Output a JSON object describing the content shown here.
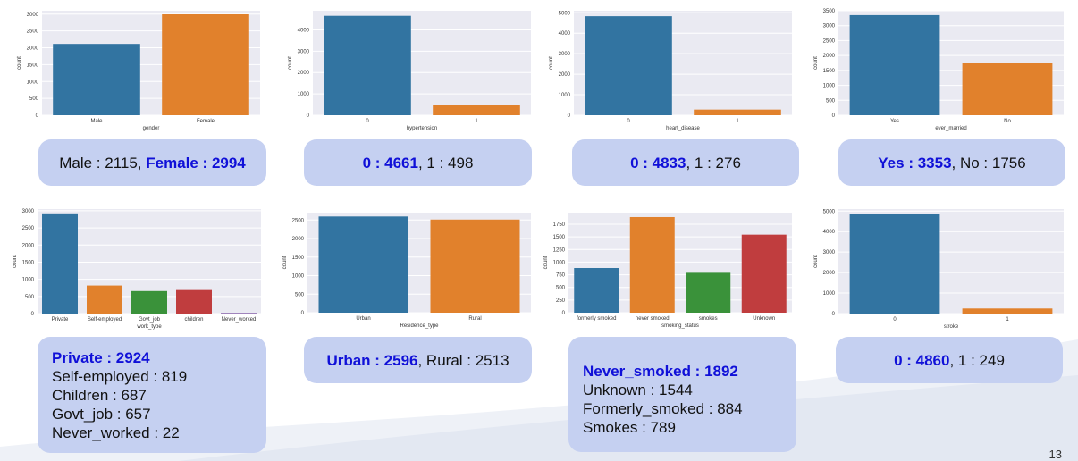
{
  "chart_data": [
    {
      "id": "c1",
      "type": "bar",
      "categories": [
        "Male",
        "Female"
      ],
      "values": [
        2115,
        2994
      ],
      "xlabel": "gender",
      "ylabel": "count",
      "ylim": [
        0,
        3100
      ],
      "yticks": [
        0,
        500,
        1000,
        1500,
        2000,
        2500,
        3000
      ],
      "colors": [
        "#3274a1",
        "#e1812c"
      ]
    },
    {
      "id": "c2",
      "type": "bar",
      "categories": [
        "0",
        "1"
      ],
      "values": [
        4661,
        498
      ],
      "xlabel": "hypertension",
      "ylabel": "count",
      "ylim": [
        0,
        4900
      ],
      "yticks": [
        0,
        1000,
        2000,
        3000,
        4000
      ],
      "colors": [
        "#3274a1",
        "#e1812c"
      ]
    },
    {
      "id": "c3",
      "type": "bar",
      "categories": [
        "0",
        "1"
      ],
      "values": [
        4833,
        276
      ],
      "xlabel": "heart_disease",
      "ylabel": "count",
      "ylim": [
        0,
        5100
      ],
      "yticks": [
        0,
        1000,
        2000,
        3000,
        4000,
        5000
      ],
      "colors": [
        "#3274a1",
        "#e1812c"
      ]
    },
    {
      "id": "c4",
      "type": "bar",
      "categories": [
        "Yes",
        "No"
      ],
      "values": [
        3353,
        1756
      ],
      "xlabel": "ever_married",
      "ylabel": "count",
      "ylim": [
        0,
        3500
      ],
      "yticks": [
        0,
        500,
        1000,
        1500,
        2000,
        2500,
        3000,
        3500
      ],
      "colors": [
        "#3274a1",
        "#e1812c"
      ]
    },
    {
      "id": "c5",
      "type": "bar",
      "categories": [
        "Private",
        "Self-employed",
        "Govt_job",
        "children",
        "Never_worked"
      ],
      "values": [
        2924,
        819,
        657,
        687,
        22
      ],
      "xlabel": "work_type",
      "ylabel": "count",
      "ylim": [
        0,
        3050
      ],
      "yticks": [
        0,
        500,
        1000,
        1500,
        2000,
        2500,
        3000
      ],
      "colors": [
        "#3274a1",
        "#e1812c",
        "#3a923a",
        "#c03d3e",
        "#9372b2"
      ]
    },
    {
      "id": "c6",
      "type": "bar",
      "categories": [
        "Urban",
        "Rural"
      ],
      "values": [
        2596,
        2513
      ],
      "xlabel": "Residence_type",
      "ylabel": "count",
      "ylim": [
        0,
        2700
      ],
      "yticks": [
        0,
        500,
        1000,
        1500,
        2000,
        2500
      ],
      "colors": [
        "#3274a1",
        "#e1812c"
      ]
    },
    {
      "id": "c7",
      "type": "bar",
      "categories": [
        "formerly smoked",
        "never smoked",
        "smokes",
        "Unknown"
      ],
      "values": [
        884,
        1892,
        789,
        1544
      ],
      "xlabel": "smoking_status",
      "ylabel": "count",
      "ylim": [
        0,
        1980
      ],
      "yticks": [
        0,
        250,
        500,
        750,
        1000,
        1250,
        1500,
        1750
      ],
      "colors": [
        "#3274a1",
        "#e1812c",
        "#3a923a",
        "#c03d3e"
      ]
    },
    {
      "id": "c8",
      "type": "bar",
      "categories": [
        "0",
        "1"
      ],
      "values": [
        4860,
        249
      ],
      "xlabel": "stroke",
      "ylabel": "count",
      "ylim": [
        0,
        5100
      ],
      "yticks": [
        0,
        1000,
        2000,
        3000,
        4000,
        5000
      ],
      "colors": [
        "#3274a1",
        "#e1812c"
      ]
    }
  ],
  "summaries": {
    "gender": {
      "male": "Male : 2115, ",
      "female": "Female : 2994"
    },
    "hypertension": {
      "hl": "0 : 4661",
      "rest": ", 1 : 498"
    },
    "heart_disease": {
      "hl": "0 : 4833",
      "rest": ", 1 : 276"
    },
    "ever_married": {
      "hl": "Yes : 3353",
      "rest": ", No : 1756"
    },
    "work_type": {
      "hl": "Private : 2924",
      "lines": [
        "Self-employed : 819",
        "Children : 687",
        "Govt_job : 657",
        "Never_worked : 22"
      ]
    },
    "residence": {
      "hl": "Urban : 2596",
      "rest": ", Rural : 2513"
    },
    "smoking": {
      "hl": "Never_smoked : 1892",
      "lines": [
        "Unknown : 1544",
        "Formerly_smoked : 884",
        "Smokes : 789"
      ]
    },
    "stroke": {
      "hl": "0 : 4860",
      "rest": ", 1 : 249"
    }
  },
  "page_number": "13"
}
